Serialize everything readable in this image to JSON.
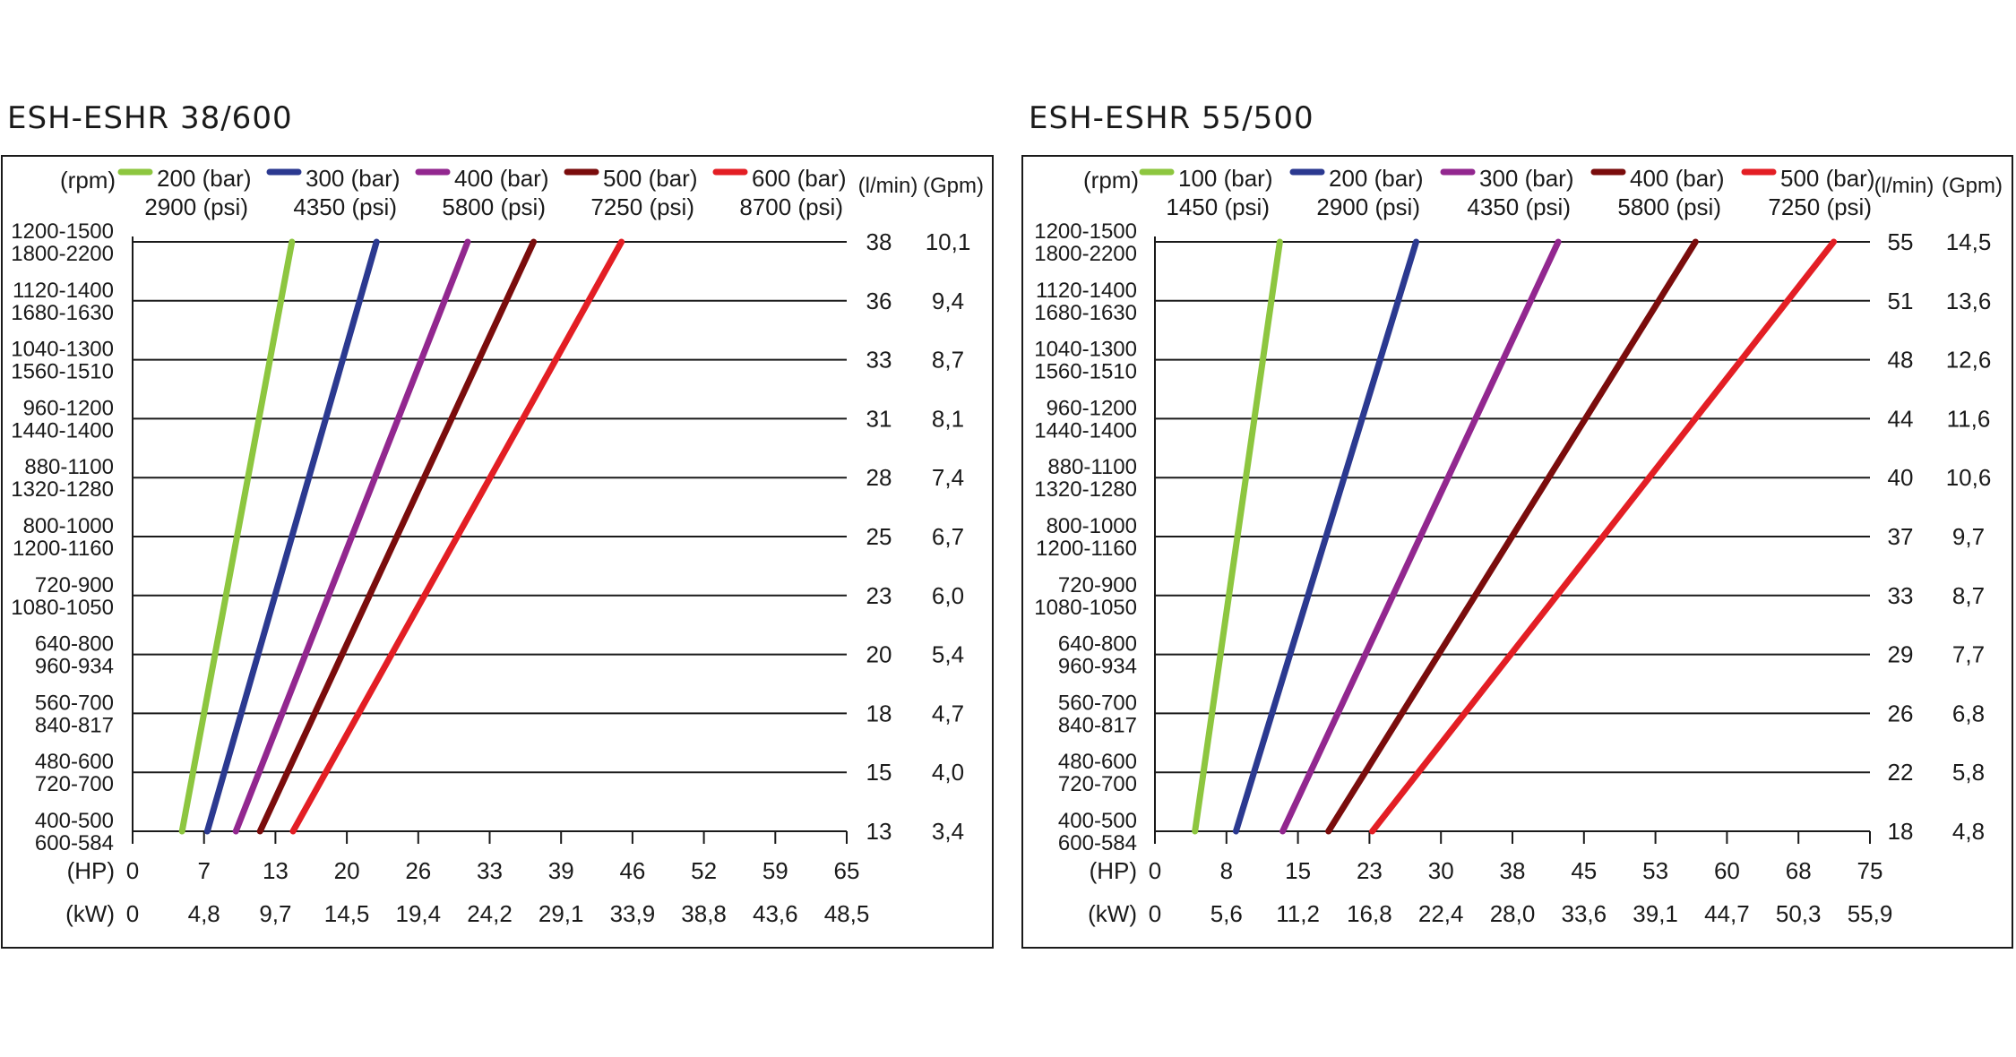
{
  "chart_data": [
    {
      "type": "line",
      "title": "ESH-ESHR 38/600",
      "rpm_header": "(rpm)",
      "flow_header": "(l/min)",
      "gpm_header": "(Gpm)",
      "hp_label": "(HP)",
      "kw_label": "(kW)",
      "legend": [
        {
          "bar": "200 (bar)",
          "psi": "2900 (psi)",
          "color": "#8dc63f"
        },
        {
          "bar": "300 (bar)",
          "psi": "4350 (psi)",
          "color": "#2b3990"
        },
        {
          "bar": "400 (bar)",
          "psi": "5800 (psi)",
          "color": "#92278f"
        },
        {
          "bar": "500 (bar)",
          "psi": "7250 (psi)",
          "color": "#7a0c0c"
        },
        {
          "bar": "600 (bar)",
          "psi": "8700 (psi)",
          "color": "#e31e24"
        }
      ],
      "rpm_rows": [
        [
          "1200-1500",
          "1800-2200"
        ],
        [
          "1120-1400",
          "1680-1630"
        ],
        [
          "1040-1300",
          "1560-1510"
        ],
        [
          "960-1200",
          "1440-1400"
        ],
        [
          "880-1100",
          "1320-1280"
        ],
        [
          "800-1000",
          "1200-1160"
        ],
        [
          "720-900",
          "1080-1050"
        ],
        [
          "640-800",
          "960-934"
        ],
        [
          "560-700",
          "840-817"
        ],
        [
          "480-600",
          "720-700"
        ],
        [
          "400-500",
          "600-584"
        ]
      ],
      "flow_lmin": [
        "38",
        "36",
        "33",
        "31",
        "28",
        "25",
        "23",
        "20",
        "18",
        "15",
        "13"
      ],
      "flow_gpm": [
        "10,1",
        "9,4",
        "8,7",
        "8,1",
        "7,4",
        "6,7",
        "6,0",
        "5,4",
        "4,7",
        "4,0",
        "3,4"
      ],
      "hp_ticks": [
        "0",
        "7",
        "13",
        "20",
        "26",
        "33",
        "39",
        "46",
        "52",
        "59",
        "65"
      ],
      "kw_ticks": [
        "0",
        "4,8",
        "9,7",
        "14,5",
        "19,4",
        "24,2",
        "29,1",
        "33,9",
        "38,8",
        "43,6",
        "48,5"
      ],
      "xlim": [
        0,
        65
      ],
      "ylim": [
        13,
        38
      ],
      "series": [
        {
          "name": "200 (bar)",
          "x": [
            4.5,
            14.5
          ],
          "y": [
            13,
            38
          ]
        },
        {
          "name": "300 (bar)",
          "x": [
            6.8,
            22.2
          ],
          "y": [
            13,
            38
          ]
        },
        {
          "name": "400 (bar)",
          "x": [
            9.4,
            30.5
          ],
          "y": [
            13,
            38
          ]
        },
        {
          "name": "500 (bar)",
          "x": [
            11.6,
            36.5
          ],
          "y": [
            13,
            38
          ]
        },
        {
          "name": "600 (bar)",
          "x": [
            14.6,
            44.5
          ],
          "y": [
            13,
            38
          ]
        }
      ]
    },
    {
      "type": "line",
      "title": "ESH-ESHR 55/500",
      "rpm_header": "(rpm)",
      "flow_header": "(l/min)",
      "gpm_header": "(Gpm)",
      "hp_label": "(HP)",
      "kw_label": "(kW)",
      "legend": [
        {
          "bar": "100 (bar)",
          "psi": "1450 (psi)",
          "color": "#8dc63f"
        },
        {
          "bar": "200 (bar)",
          "psi": "2900 (psi)",
          "color": "#2b3990"
        },
        {
          "bar": "300 (bar)",
          "psi": "4350 (psi)",
          "color": "#92278f"
        },
        {
          "bar": "400 (bar)",
          "psi": "5800 (psi)",
          "color": "#7a0c0c"
        },
        {
          "bar": "500 (bar)",
          "psi": "7250 (psi)",
          "color": "#e31e24"
        }
      ],
      "rpm_rows": [
        [
          "1200-1500",
          "1800-2200"
        ],
        [
          "1120-1400",
          "1680-1630"
        ],
        [
          "1040-1300",
          "1560-1510"
        ],
        [
          "960-1200",
          "1440-1400"
        ],
        [
          "880-1100",
          "1320-1280"
        ],
        [
          "800-1000",
          "1200-1160"
        ],
        [
          "720-900",
          "1080-1050"
        ],
        [
          "640-800",
          "960-934"
        ],
        [
          "560-700",
          "840-817"
        ],
        [
          "480-600",
          "720-700"
        ],
        [
          "400-500",
          "600-584"
        ]
      ],
      "flow_lmin": [
        "55",
        "51",
        "48",
        "44",
        "40",
        "37",
        "33",
        "29",
        "26",
        "22",
        "18"
      ],
      "flow_gpm": [
        "14,5",
        "13,6",
        "12,6",
        "11,6",
        "10,6",
        "9,7",
        "8,7",
        "7,7",
        "6,8",
        "5,8",
        "4,8"
      ],
      "hp_ticks": [
        "0",
        "8",
        "15",
        "23",
        "30",
        "38",
        "45",
        "53",
        "60",
        "68",
        "75"
      ],
      "kw_ticks": [
        "0",
        "5,6",
        "11,2",
        "16,8",
        "22,4",
        "28,0",
        "33,6",
        "39,1",
        "44,7",
        "50,3",
        "55,9"
      ],
      "xlim": [
        0,
        75
      ],
      "ylim": [
        18,
        55
      ],
      "series": [
        {
          "name": "100 (bar)",
          "x": [
            4.2,
            13.1
          ],
          "y": [
            18,
            55
          ]
        },
        {
          "name": "200 (bar)",
          "x": [
            8.5,
            27.4
          ],
          "y": [
            18,
            55
          ]
        },
        {
          "name": "300 (bar)",
          "x": [
            13.4,
            42.3
          ],
          "y": [
            18,
            55
          ]
        },
        {
          "name": "400 (bar)",
          "x": [
            18.2,
            56.7
          ],
          "y": [
            18,
            55
          ]
        },
        {
          "name": "500 (bar)",
          "x": [
            22.8,
            71.2
          ],
          "y": [
            18,
            55
          ]
        }
      ]
    }
  ]
}
